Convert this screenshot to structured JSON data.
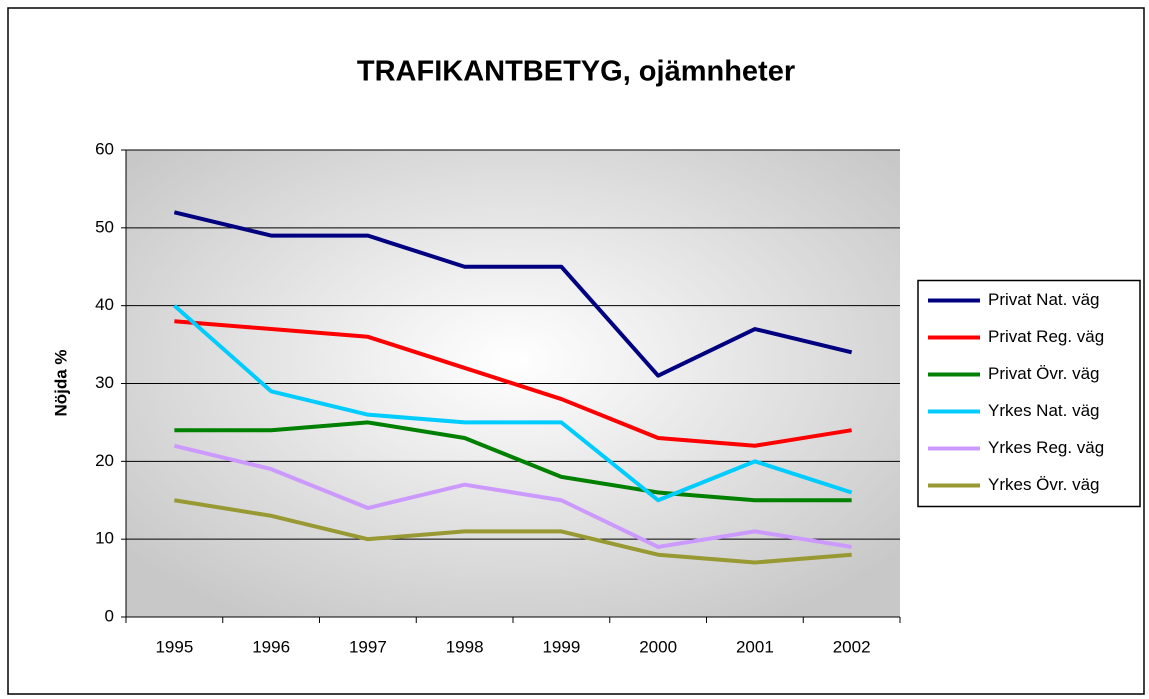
{
  "chart_data": {
    "type": "line",
    "title": "TRAFIKANTBETYG, ojämnheter",
    "y_label": "Nöjda %",
    "categories": [
      "1995",
      "1996",
      "1997",
      "1998",
      "1999",
      "2000",
      "2001",
      "2002"
    ],
    "series": [
      {
        "name": "Privat Nat. väg",
        "color": "#000080",
        "values": [
          52,
          49,
          49,
          45,
          45,
          31,
          37,
          34
        ]
      },
      {
        "name": "Privat Reg. väg",
        "color": "#ff0000",
        "values": [
          38,
          37,
          36,
          32,
          28,
          23,
          22,
          24
        ]
      },
      {
        "name": "Privat Övr. väg",
        "color": "#008000",
        "values": [
          24,
          24,
          25,
          23,
          18,
          16,
          15,
          15
        ]
      },
      {
        "name": "Yrkes Nat. väg",
        "color": "#00ccff",
        "values": [
          40,
          29,
          26,
          25,
          25,
          15,
          20,
          16
        ]
      },
      {
        "name": "Yrkes Reg. väg",
        "color": "#cc99ff",
        "values": [
          22,
          19,
          14,
          17,
          15,
          9,
          11,
          9
        ]
      },
      {
        "name": "Yrkes Övr. väg",
        "color": "#999933",
        "values": [
          15,
          13,
          10,
          11,
          11,
          8,
          7,
          8
        ]
      }
    ],
    "ylim": [
      0,
      60
    ],
    "yticks": [
      0,
      10,
      20,
      30,
      40,
      50,
      60
    ],
    "grid": true,
    "legend": "right"
  }
}
